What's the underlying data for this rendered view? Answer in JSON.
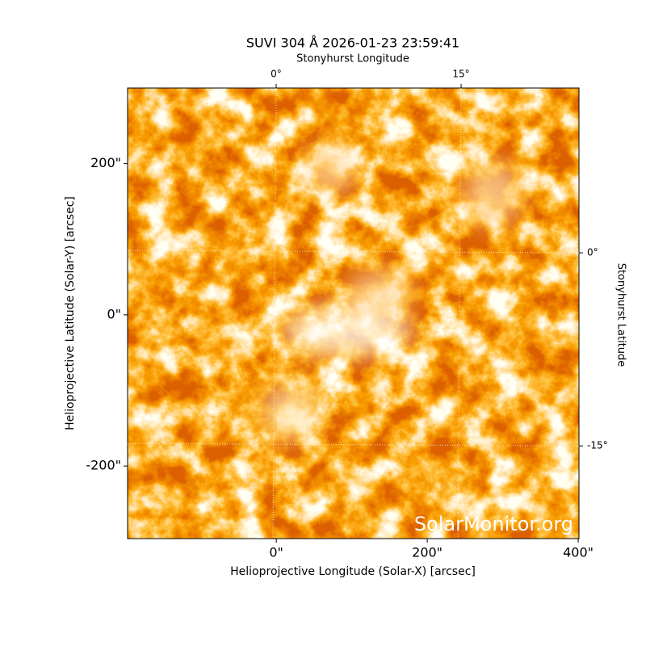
{
  "chart_data": {
    "type": "image",
    "title": "SUVI 304 Å 2026-01-23 23:59:41",
    "xlabel": "Helioprojective Longitude (Solar-X) [arcsec]",
    "ylabel": "Helioprojective Latitude (Solar-Y) [arcsec]",
    "x2label": "Stonyhurst Longitude",
    "y2label": "Stonyhurst Latitude",
    "watermark": "SolarMonitor.org",
    "xlim": [
      -197,
      401
    ],
    "ylim": [
      -296,
      300
    ],
    "xticks": [
      {
        "value": 0,
        "label": "0\""
      },
      {
        "value": 200,
        "label": "200\""
      },
      {
        "value": 400,
        "label": "400\""
      }
    ],
    "yticks": [
      {
        "value": -200,
        "label": "-200\""
      },
      {
        "value": 0,
        "label": "0\""
      },
      {
        "value": 200,
        "label": "200\""
      }
    ],
    "x2lim": [
      -12.05,
      24.56
    ],
    "x2ticks": [
      {
        "value": 0,
        "label": "0°"
      },
      {
        "value": 15,
        "label": "15°"
      }
    ],
    "y2lim": [
      -22.2,
      12.8
    ],
    "y2ticks": [
      {
        "value": -15,
        "label": "-15°"
      },
      {
        "value": 0,
        "label": "0°"
      }
    ],
    "grid": true
  }
}
